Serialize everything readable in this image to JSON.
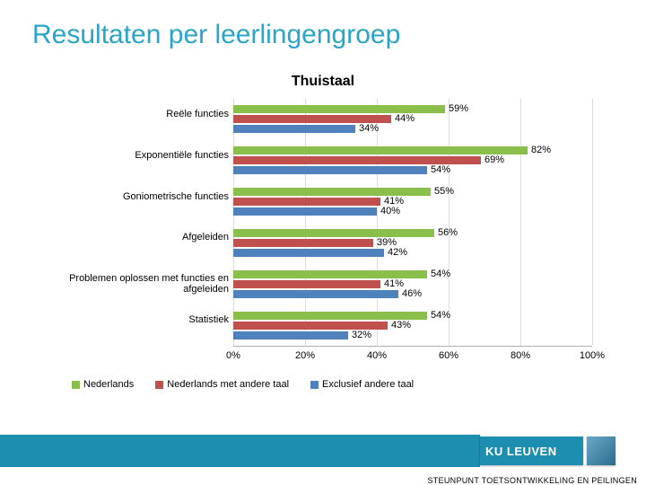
{
  "title": {
    "text": "Resultaten per leerlingengroep",
    "color": "#2aa4c8",
    "fontsize": 30
  },
  "chart": {
    "type": "bar",
    "title": "Thuistaal",
    "title_fontsize": 16,
    "background_color": "#ffffff",
    "grid_color": "#dcdcdc",
    "axis_color": "#b0b0b0",
    "label_fontsize": 11,
    "xlim": [
      0,
      100
    ],
    "xtick_step": 20,
    "xtick_suffix": "%",
    "series": [
      {
        "name": "Nederlands",
        "color": "#8bbf4b"
      },
      {
        "name": "Nederlands met andere taal",
        "color": "#c0504d"
      },
      {
        "name": "Exclusief andere taal",
        "color": "#4f81bd"
      }
    ],
    "categories": [
      {
        "label": "Reële functies",
        "values": [
          59,
          44,
          34
        ]
      },
      {
        "label": "Exponentiële functies",
        "values": [
          82,
          69,
          54
        ]
      },
      {
        "label": "Goniometrische functies",
        "values": [
          55,
          41,
          40
        ]
      },
      {
        "label": "Afgeleiden",
        "values": [
          56,
          39,
          42
        ]
      },
      {
        "label": "Problemen oplossen met functies en afgeleiden",
        "values": [
          54,
          41,
          46
        ]
      },
      {
        "label": "Statistiek",
        "values": [
          54,
          43,
          32
        ]
      }
    ]
  },
  "footer": {
    "text": "STEUNPUNT TOETSONTWIKKELING EN PEILINGEN",
    "bar_color": "#1d8db0",
    "logo_text": "KU LEUVEN",
    "logo_bg": "#1d8db0"
  }
}
